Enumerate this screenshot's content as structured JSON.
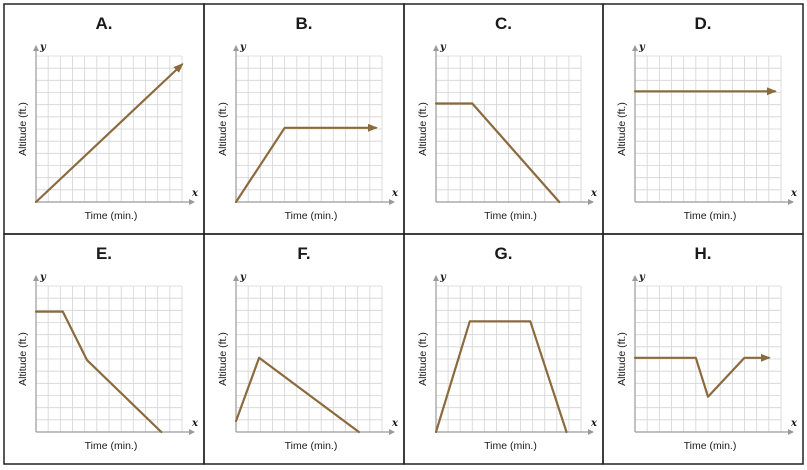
{
  "chart_data": [
    {
      "label": "A.",
      "type": "line",
      "xlabel": "Time (min.)",
      "ylabel": "Altitude (ft.)",
      "x_axis_symbol": "x",
      "y_axis_symbol": "y",
      "xlim": [
        0,
        12
      ],
      "ylim": [
        0,
        12
      ],
      "grid": true,
      "arrow_at_end": true,
      "x": [
        0,
        12
      ],
      "y": [
        0,
        11.3
      ]
    },
    {
      "label": "B.",
      "type": "line",
      "xlabel": "Time (min.)",
      "ylabel": "Altitude (ft.)",
      "x_axis_symbol": "x",
      "y_axis_symbol": "y",
      "xlim": [
        0,
        12
      ],
      "ylim": [
        0,
        12
      ],
      "grid": true,
      "arrow_at_end": true,
      "x": [
        0,
        4,
        11.5
      ],
      "y": [
        0,
        6.1,
        6.1
      ]
    },
    {
      "label": "C.",
      "type": "line",
      "xlabel": "Time (min.)",
      "ylabel": "Altitude (ft.)",
      "x_axis_symbol": "x",
      "y_axis_symbol": "y",
      "xlim": [
        0,
        12
      ],
      "ylim": [
        0,
        12
      ],
      "grid": true,
      "arrow_at_end": false,
      "x": [
        0,
        3,
        10.2
      ],
      "y": [
        8.1,
        8.1,
        0
      ]
    },
    {
      "label": "D.",
      "type": "line",
      "xlabel": "Time (min.)",
      "ylabel": "Altitude (ft.)",
      "x_axis_symbol": "x",
      "y_axis_symbol": "y",
      "xlim": [
        0,
        12
      ],
      "ylim": [
        0,
        12
      ],
      "grid": true,
      "arrow_at_end": true,
      "x": [
        0,
        11.5
      ],
      "y": [
        9.1,
        9.1
      ]
    },
    {
      "label": "E.",
      "type": "line",
      "xlabel": "Time (min.)",
      "ylabel": "Altitude (ft.)",
      "x_axis_symbol": "x",
      "y_axis_symbol": "y",
      "xlim": [
        0,
        12
      ],
      "ylim": [
        0,
        12
      ],
      "grid": true,
      "arrow_at_end": false,
      "x": [
        0,
        2.2,
        4.2,
        10.3
      ],
      "y": [
        9.9,
        9.9,
        5.9,
        0
      ]
    },
    {
      "label": "F.",
      "type": "line",
      "xlabel": "Time (min.)",
      "ylabel": "Altitude (ft.)",
      "x_axis_symbol": "x",
      "y_axis_symbol": "y",
      "xlim": [
        0,
        12
      ],
      "ylim": [
        0,
        12
      ],
      "grid": true,
      "arrow_at_end": false,
      "x": [
        0,
        1.9,
        10.1
      ],
      "y": [
        0.9,
        6.1,
        0
      ]
    },
    {
      "label": "G.",
      "type": "line",
      "xlabel": "Time (min.)",
      "ylabel": "Altitude (ft.)",
      "x_axis_symbol": "x",
      "y_axis_symbol": "y",
      "xlim": [
        0,
        12
      ],
      "ylim": [
        0,
        12
      ],
      "grid": true,
      "arrow_at_end": false,
      "x": [
        0,
        2.8,
        7.8,
        10.8
      ],
      "y": [
        0,
        9.1,
        9.1,
        0
      ]
    },
    {
      "label": "H.",
      "type": "line",
      "xlabel": "Time (min.)",
      "ylabel": "Altitude (ft.)",
      "x_axis_symbol": "x",
      "y_axis_symbol": "y",
      "xlim": [
        0,
        12
      ],
      "ylim": [
        0,
        12
      ],
      "grid": true,
      "arrow_at_end": true,
      "x": [
        0,
        5,
        6,
        9,
        11
      ],
      "y": [
        6.1,
        6.1,
        2.9,
        6.1,
        6.1
      ]
    }
  ],
  "colors": {
    "line": "#8b6a3e",
    "grid": "#d4d4d4",
    "axis": "#9a9a9a",
    "border": "#222222"
  }
}
